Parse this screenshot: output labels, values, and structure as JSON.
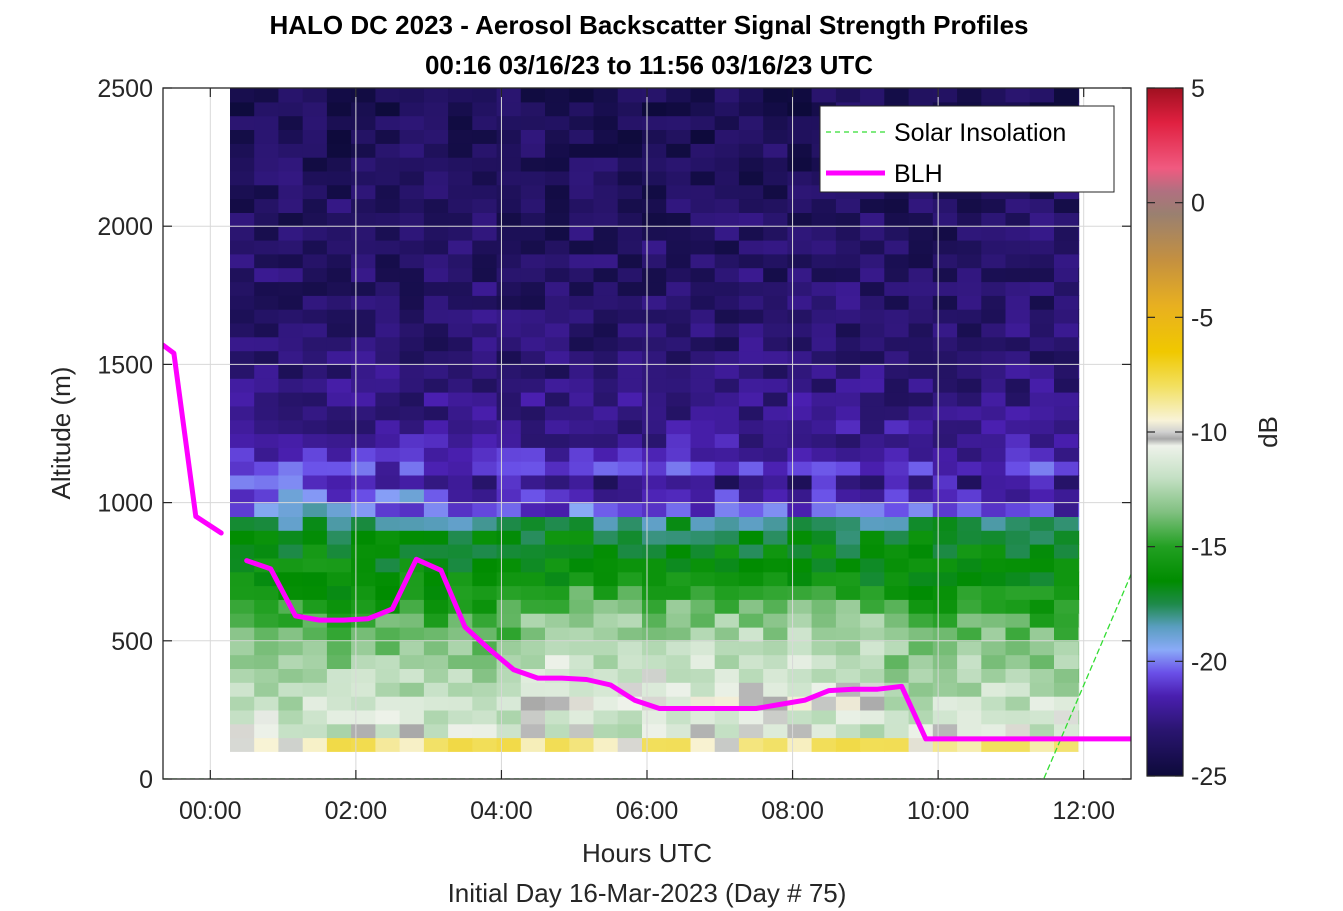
{
  "chart_data": {
    "type": "heatmap",
    "title": "HALO DC 2023 - Aerosol Backscatter Signal Strength Profiles",
    "subtitle": "00:16 03/16/23 to 11:56 03/16/23  UTC",
    "xlabel": "Hours UTC",
    "xlabel2": "Initial Day 16-Mar-2023 (Day # 75)",
    "ylabel": "Altitude (m)",
    "colorbar_label": "dB",
    "xlim": [
      -0.65,
      12.65
    ],
    "ylim": [
      0,
      2500
    ],
    "x_ticks": [
      0,
      2,
      4,
      6,
      8,
      10,
      12
    ],
    "x_tick_labels": [
      "00:00",
      "02:00",
      "04:00",
      "06:00",
      "08:00",
      "10:00",
      "12:00"
    ],
    "y_ticks": [
      0,
      500,
      1000,
      1500,
      2000,
      2500
    ],
    "y_tick_labels": [
      "0",
      "500",
      "1000",
      "1500",
      "2000",
      "2500"
    ],
    "clim": [
      -25,
      5
    ],
    "colorbar_ticks": [
      5,
      0,
      -5,
      -10,
      -15,
      -20,
      -25
    ],
    "colorbar_tick_labels": [
      "5",
      "0",
      "-5",
      "-10",
      "-15",
      "-20",
      "-25"
    ],
    "grid": true,
    "legend_position": "top-right",
    "heatmap": {
      "x_start": 0.27,
      "x_end": 11.93,
      "y_start": 100,
      "y_end": 2500,
      "column_step_hours": 0.333,
      "row_step_m": 50,
      "profile_by_altitude_dB": [
        {
          "alt": 100,
          "dB": -7
        },
        {
          "alt": 150,
          "dB": -11
        },
        {
          "alt": 300,
          "dB": -12
        },
        {
          "alt": 500,
          "dB": -13.5
        },
        {
          "alt": 700,
          "dB": -16
        },
        {
          "alt": 900,
          "dB": -17
        },
        {
          "alt": 1000,
          "dB": -19.5
        },
        {
          "alt": 1200,
          "dB": -22
        },
        {
          "alt": 1500,
          "dB": -23
        },
        {
          "alt": 2500,
          "dB": -24
        }
      ]
    },
    "series": [
      {
        "name": "Solar Insolation",
        "style": "dashed",
        "color": "#33dd33",
        "x": [
          -0.65,
          11.45,
          12.65
        ],
        "y": [
          0,
          0,
          740
        ]
      },
      {
        "name": "BLH",
        "style": "solid",
        "color": "#ff00ff",
        "segments": [
          {
            "x": [
              -0.65,
              -0.5,
              -0.2,
              0.15
            ],
            "y": [
              1570,
              1540,
              950,
              890
            ]
          },
          {
            "x": [
              0.5,
              0.83,
              1.17,
              1.5,
              1.83,
              2.17,
              2.5,
              2.83,
              3.17,
              3.5,
              3.83,
              4.17,
              4.5,
              4.83,
              5.17,
              5.5,
              5.83,
              6.17,
              6.5,
              6.83,
              7.17,
              7.5,
              7.83,
              8.17,
              8.5,
              8.83,
              9.17,
              9.5,
              9.83,
              10.17,
              10.5,
              10.83,
              11.17,
              11.5,
              11.83,
              12.17,
              12.65
            ],
            "y": [
              790,
              760,
              590,
              575,
              575,
              580,
              615,
              795,
              755,
              550,
              470,
              395,
              365,
              365,
              360,
              340,
              285,
              255,
              255,
              255,
              255,
              255,
              270,
              285,
              320,
              325,
              325,
              335,
              145,
              145,
              145,
              145,
              145,
              145,
              145,
              145,
              145
            ]
          }
        ]
      }
    ]
  },
  "colors": {
    "colormap_stops": [
      {
        "v": -25,
        "c": "#0d0a3a"
      },
      {
        "v": -23,
        "c": "#2a1570"
      },
      {
        "v": -21.5,
        "c": "#4a1fb0"
      },
      {
        "v": -20.5,
        "c": "#6a50e8"
      },
      {
        "v": -19.5,
        "c": "#8aaaf8"
      },
      {
        "v": -18.5,
        "c": "#5a9ec0"
      },
      {
        "v": -17.5,
        "c": "#1e8a4a"
      },
      {
        "v": -16.5,
        "c": "#008c00"
      },
      {
        "v": -15,
        "c": "#22a022"
      },
      {
        "v": -13.5,
        "c": "#80c080"
      },
      {
        "v": -12,
        "c": "#c4e0c4"
      },
      {
        "v": -10.6,
        "c": "#eef2ea"
      },
      {
        "v": -10.3,
        "c": "#a8a8a8"
      },
      {
        "v": -10,
        "c": "#d0d0d0"
      },
      {
        "v": -9.5,
        "c": "#f8f3d8"
      },
      {
        "v": -8,
        "c": "#f2e060"
      },
      {
        "v": -6.5,
        "c": "#f0c800"
      },
      {
        "v": -4.5,
        "c": "#e8b020"
      },
      {
        "v": -2.5,
        "c": "#c49040"
      },
      {
        "v": -0.5,
        "c": "#9a8070"
      },
      {
        "v": 0.5,
        "c": "#b07080"
      },
      {
        "v": 1.5,
        "c": "#f05a80"
      },
      {
        "v": 3.5,
        "c": "#e02040"
      },
      {
        "v": 5,
        "c": "#a01020"
      }
    ]
  }
}
